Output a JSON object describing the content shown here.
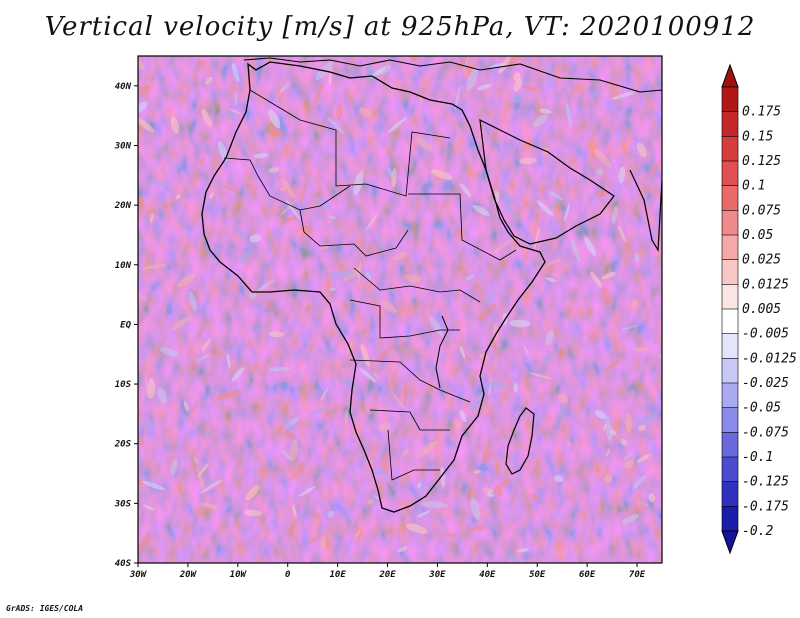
{
  "title": "Vertical velocity [m/s] at 925hPa, VT: 2020100912",
  "credit": "GrADS: IGES/COLA",
  "map": {
    "region": "Africa and Arabian Peninsula",
    "lon_range": [
      -30,
      75
    ],
    "lat_range": [
      -40,
      45
    ],
    "lat_ticks": [
      {
        "value": 40,
        "label": "40N"
      },
      {
        "value": 30,
        "label": "30N"
      },
      {
        "value": 20,
        "label": "20N"
      },
      {
        "value": 10,
        "label": "10N"
      },
      {
        "value": 0,
        "label": "EQ"
      },
      {
        "value": -10,
        "label": "10S"
      },
      {
        "value": -20,
        "label": "20S"
      },
      {
        "value": -30,
        "label": "30S"
      },
      {
        "value": -40,
        "label": "40S"
      }
    ],
    "lon_ticks": [
      {
        "value": -30,
        "label": "30W"
      },
      {
        "value": -20,
        "label": "20W"
      },
      {
        "value": -10,
        "label": "10W"
      },
      {
        "value": 0,
        "label": "0"
      },
      {
        "value": 10,
        "label": "10E"
      },
      {
        "value": 20,
        "label": "20E"
      },
      {
        "value": 30,
        "label": "30E"
      },
      {
        "value": 40,
        "label": "40E"
      },
      {
        "value": 50,
        "label": "50E"
      },
      {
        "value": 60,
        "label": "60E"
      },
      {
        "value": 70,
        "label": "70E"
      }
    ]
  },
  "colorbar": {
    "levels": [
      {
        "label": "0.175",
        "color": "#b01818"
      },
      {
        "label": "0.15",
        "color": "#c42828"
      },
      {
        "label": "0.125",
        "color": "#d63c3c"
      },
      {
        "label": "0.1",
        "color": "#e25050"
      },
      {
        "label": "0.075",
        "color": "#ea6a6a"
      },
      {
        "label": "0.05",
        "color": "#f08a8a"
      },
      {
        "label": "0.025",
        "color": "#f4a8a8"
      },
      {
        "label": "0.0125",
        "color": "#f8c8c8"
      },
      {
        "label": "0.005",
        "color": "#fbe4e4"
      },
      {
        "label": "-0.005",
        "color": "#ffffff"
      },
      {
        "label": "-0.0125",
        "color": "#e4e4fb"
      },
      {
        "label": "-0.025",
        "color": "#c8c8f6"
      },
      {
        "label": "-0.05",
        "color": "#aaaaf0"
      },
      {
        "label": "-0.075",
        "color": "#8a8ae8"
      },
      {
        "label": "-0.1",
        "color": "#6a6ade"
      },
      {
        "label": "-0.125",
        "color": "#4c4cd0"
      },
      {
        "label": "-0.175",
        "color": "#3030c0"
      },
      {
        "label": "-0.2",
        "color": "#1c1caa"
      }
    ],
    "top_color": "#a01010",
    "bottom_color": "#14149a"
  }
}
